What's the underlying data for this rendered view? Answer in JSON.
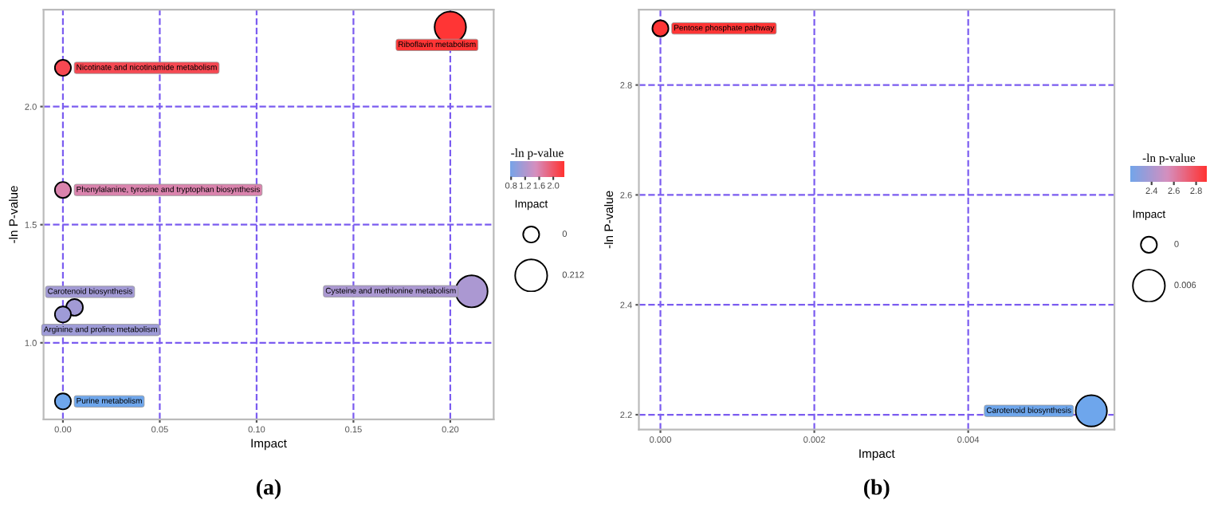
{
  "chart_data": [
    {
      "type": "bubble",
      "xlabel": "Impact",
      "ylabel": "-ln P-value",
      "clabel": "-ln p-value",
      "legend_title": "Impact",
      "x": [
        0.2,
        0.0,
        0.0,
        0.006,
        0.0,
        0.211,
        0.0
      ],
      "values": [
        2.336,
        2.164,
        1.647,
        1.15,
        1.12,
        1.218,
        0.752
      ],
      "sizes": [
        0.958,
        0.25,
        0.25,
        0.271,
        0.25,
        0.996,
        0.25
      ],
      "cvalues": [
        2.336,
        2.164,
        1.647,
        1.15,
        1.12,
        1.218,
        0.752
      ],
      "size_legend": [
        {
          "value": 0.25,
          "label": "0"
        },
        {
          "value": 1.0,
          "label": "0.212"
        }
      ],
      "clim": [
        0.752,
        2.336
      ],
      "cticks": [
        0.8,
        1.2,
        1.6,
        {
          "value": 2.0,
          "label": "2.0"
        }
      ],
      "xlim": [
        -0.01,
        0.2224
      ],
      "ylim": [
        0.676,
        2.41
      ],
      "xticks": [
        {
          "value": 0,
          "label": "0.00"
        },
        {
          "value": 0.05,
          "label": "0.05"
        },
        {
          "value": 0.1,
          "label": "0.10"
        },
        {
          "value": 0.15,
          "label": "0.15"
        },
        {
          "value": 0.2,
          "label": "0.20"
        }
      ],
      "yticks": [
        {
          "value": 1.0,
          "label": "1.0"
        },
        1.5,
        {
          "value": 2.0,
          "label": "2.0"
        }
      ],
      "grid": true,
      "annotations": [
        {
          "text": "Riboflavin metabolism",
          "x": 0.2,
          "y": 2.336
        },
        {
          "text": "Nicotinate and nicotinamide metabolism",
          "x": 0.0,
          "y": 2.164
        },
        {
          "text": "Phenylalanine, tyrosine and tryptophan biosynthesis",
          "x": 0.0,
          "y": 1.647
        },
        {
          "text": "Carotenoid biosynthesis",
          "x": 0.006,
          "y": 1.15
        },
        {
          "text": "Arginine and proline metabolism",
          "x": 0.0,
          "y": 1.12
        },
        {
          "text": "Cysteine and methionine metabolism",
          "x": 0.211,
          "y": 1.218
        },
        {
          "text": "Purine metabolism",
          "x": 0.0,
          "y": 0.752
        },
        "(a)"
      ]
    },
    {
      "type": "bubble",
      "xlabel": "Impact",
      "ylabel": "-ln P-value",
      "clabel": "-ln p-value",
      "legend_title": "Impact",
      "x": [
        0.0,
        0.0056
      ],
      "values": [
        2.903,
        2.207
      ],
      "sizes": [
        0.25,
        0.95
      ],
      "cvalues": [
        2.903,
        2.207
      ],
      "size_legend": [
        {
          "value": 0.25,
          "label": "0"
        },
        {
          "value": 1.0,
          "label": "0.006"
        }
      ],
      "clim": [
        2.207,
        2.903
      ],
      "cticks": [
        2.4,
        2.6,
        2.8
      ],
      "xlim": [
        -0.00028,
        0.0059
      ],
      "ylim": [
        2.173,
        2.937
      ],
      "xticks": [
        {
          "value": 0,
          "label": "0.000"
        },
        {
          "value": 0.002,
          "label": "0.002"
        },
        {
          "value": 0.004,
          "label": "0.004"
        }
      ],
      "yticks": [
        2.2,
        2.4,
        2.6,
        2.8
      ],
      "grid": true,
      "annotations": [
        {
          "text": "Pentose phosphate pathway",
          "x": 0.0,
          "y": 2.903
        },
        {
          "text": "Carotenoid biosynthesis",
          "x": 0.0056,
          "y": 2.207
        },
        "(b)"
      ]
    }
  ]
}
